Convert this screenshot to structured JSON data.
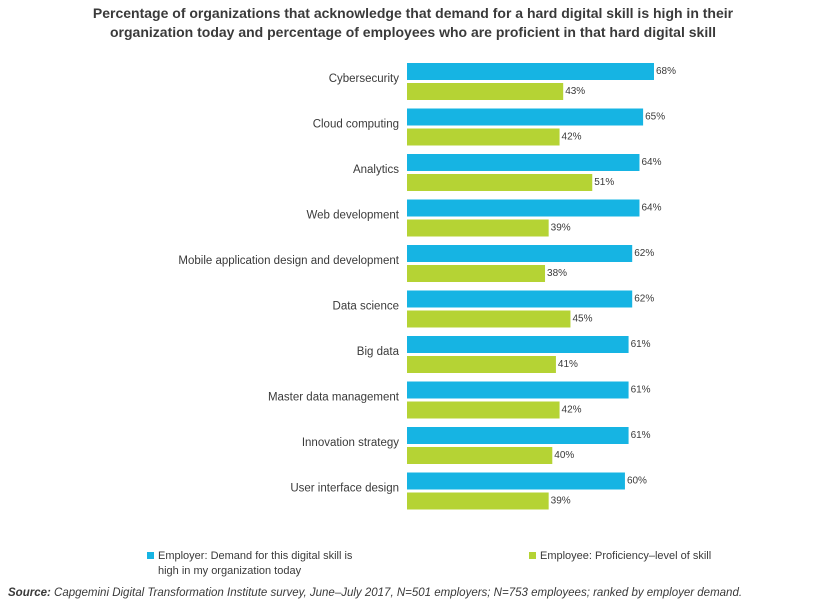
{
  "chart_data": {
    "type": "bar",
    "orientation": "horizontal",
    "title_line1": "Percentage of organizations that acknowledge that demand for a hard digital skill is high in their",
    "title_line2": "organization today and percentage of employees who are proficient in that hard digital skill",
    "categories": [
      "Cybersecurity",
      "Cloud computing",
      "Analytics",
      "Web development",
      "Mobile application design and development",
      "Data science",
      "Big data",
      "Master data management",
      "Innovation strategy",
      "User interface design"
    ],
    "series": [
      {
        "name": "Employer: Demand for this digital skill is high in my organization today",
        "legend_line1": "Employer: Demand for this digital skill is",
        "legend_line2": "high in my organization today",
        "color": "#16b4e3",
        "values": [
          68,
          65,
          64,
          64,
          62,
          62,
          61,
          61,
          61,
          60
        ]
      },
      {
        "name": "Employee: Proficiency–level of skill",
        "legend_line1": "Employee: Proficiency–level of skill",
        "color": "#b5d334",
        "values": [
          43,
          42,
          51,
          39,
          38,
          45,
          41,
          42,
          40,
          39
        ]
      }
    ],
    "value_suffix": "%",
    "xlim": [
      0,
      100
    ],
    "legend_position": "bottom",
    "grid": false
  },
  "source": {
    "label": "Source:",
    "text": " Capgemini Digital Transformation Institute survey, June–July 2017, N=501 employers; N=753 employees; ranked by employer demand."
  }
}
